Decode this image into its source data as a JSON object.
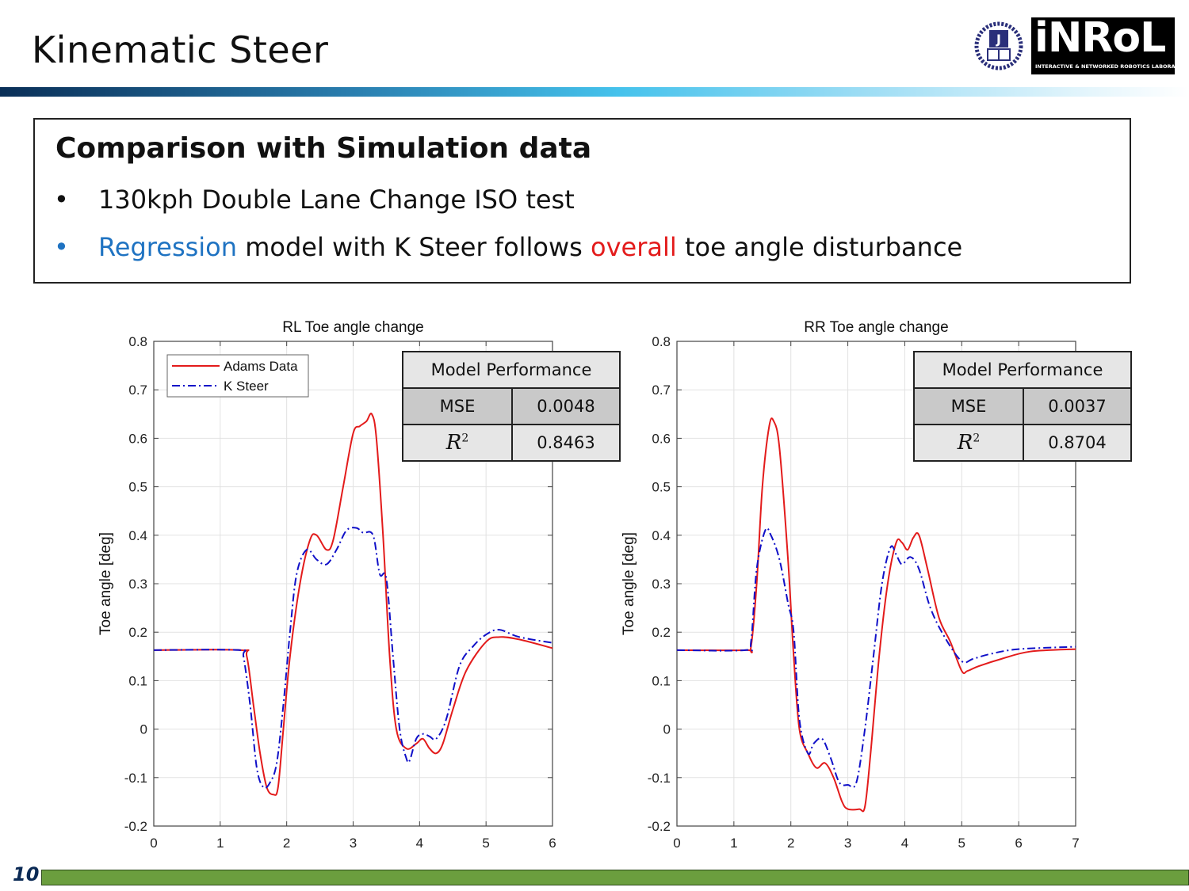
{
  "header": {
    "title": "Kinematic Steer",
    "logo_text": "iNRoL",
    "logo_subtext": "INTERACTIVE & NETWORKED ROBOTICS LABORATORY"
  },
  "summary": {
    "heading": "Comparison with Simulation data",
    "bullets": [
      {
        "marker": "•",
        "text": "130kph Double Lane Change ISO test"
      },
      {
        "marker": "•",
        "part1": "Regression",
        "part2": " model with K Steer follows ",
        "part3": "overall",
        "part4": " toe angle disturbance"
      }
    ]
  },
  "colors": {
    "adams": "#e31b1b",
    "ksteer": "#1010c8",
    "accent_blue": "#1f73c2",
    "footer": "#6b9e3e"
  },
  "tables": [
    {
      "title": "Model Performance",
      "mse_label": "MSE",
      "mse": "0.0048",
      "r2_label": "R",
      "r2_sup": "2",
      "r2": "0.8463"
    },
    {
      "title": "Model Performance",
      "mse_label": "MSE",
      "mse": "0.0037",
      "r2_label": "R",
      "r2_sup": "2",
      "r2": "0.8704"
    }
  ],
  "footer": {
    "page_number": "10"
  },
  "chart_data": [
    {
      "type": "line",
      "title": "RL Toe angle change",
      "xlabel": "",
      "ylabel": "Toe angle [deg]",
      "xlim": [
        0,
        6
      ],
      "ylim": [
        -0.2,
        0.8
      ],
      "xticks": [
        "0",
        "1",
        "2",
        "3",
        "4",
        "5",
        "6"
      ],
      "yticks": [
        "-0.2",
        "-0.1",
        "0",
        "0.1",
        "0.2",
        "0.3",
        "0.4",
        "0.5",
        "0.6",
        "0.7",
        "0.8"
      ],
      "grid": true,
      "legend": {
        "placement": "top-left",
        "entries": [
          "Adams Data",
          "K Steer"
        ]
      },
      "series": [
        {
          "name": "Adams Data",
          "style": "solid",
          "x": [
            0,
            1.3,
            1.4,
            1.5,
            1.6,
            1.7,
            1.8,
            1.87,
            1.95,
            2.05,
            2.2,
            2.35,
            2.45,
            2.6,
            2.7,
            2.85,
            3.0,
            3.1,
            3.2,
            3.28,
            3.35,
            3.45,
            3.55,
            3.65,
            3.8,
            3.95,
            4.05,
            4.15,
            4.25,
            4.35,
            4.5,
            4.7,
            5.0,
            5.2,
            5.5,
            6.0
          ],
          "y": [
            0.163,
            0.163,
            0.15,
            0.05,
            -0.05,
            -0.12,
            -0.135,
            -0.12,
            0.0,
            0.15,
            0.3,
            0.39,
            0.4,
            0.37,
            0.39,
            0.5,
            0.61,
            0.625,
            0.635,
            0.65,
            0.6,
            0.4,
            0.15,
            0.0,
            -0.04,
            -0.03,
            -0.02,
            -0.04,
            -0.05,
            -0.03,
            0.04,
            0.12,
            0.18,
            0.19,
            0.185,
            0.167
          ]
        },
        {
          "name": "K Steer",
          "style": "dashdot",
          "x": [
            0,
            1.3,
            1.35,
            1.45,
            1.55,
            1.65,
            1.75,
            1.85,
            1.95,
            2.05,
            2.15,
            2.3,
            2.45,
            2.6,
            2.75,
            2.9,
            3.05,
            3.15,
            3.3,
            3.4,
            3.5,
            3.6,
            3.7,
            3.8,
            3.85,
            3.95,
            4.05,
            4.15,
            4.25,
            4.4,
            4.6,
            4.8,
            5.0,
            5.2,
            5.5,
            6.0
          ],
          "y": [
            0.163,
            0.163,
            0.15,
            0.05,
            -0.08,
            -0.12,
            -0.11,
            -0.07,
            0.05,
            0.2,
            0.32,
            0.37,
            0.35,
            0.34,
            0.37,
            0.41,
            0.415,
            0.405,
            0.4,
            0.32,
            0.31,
            0.15,
            0.0,
            -0.06,
            -0.065,
            -0.02,
            -0.01,
            -0.015,
            -0.02,
            0.02,
            0.13,
            0.17,
            0.195,
            0.205,
            0.19,
            0.178
          ]
        }
      ]
    },
    {
      "type": "line",
      "title": "RR Toe angle change",
      "xlabel": "",
      "ylabel": "Toe angle [deg]",
      "xlim": [
        0,
        7
      ],
      "ylim": [
        -0.2,
        0.8
      ],
      "xticks": [
        "0",
        "1",
        "2",
        "3",
        "4",
        "5",
        "6",
        "7"
      ],
      "yticks": [
        "-0.2",
        "-0.1",
        "0",
        "0.1",
        "0.2",
        "0.3",
        "0.4",
        "0.5",
        "0.6",
        "0.7",
        "0.8"
      ],
      "grid": true,
      "legend": null,
      "series": [
        {
          "name": "Adams Data",
          "style": "solid",
          "x": [
            0,
            1.2,
            1.3,
            1.4,
            1.5,
            1.62,
            1.7,
            1.8,
            1.95,
            2.05,
            2.15,
            2.3,
            2.45,
            2.6,
            2.75,
            2.9,
            3.0,
            3.2,
            3.3,
            3.4,
            3.55,
            3.7,
            3.85,
            3.95,
            4.05,
            4.15,
            4.25,
            4.4,
            4.6,
            4.8,
            5.0,
            5.1,
            5.3,
            5.7,
            6.2,
            7.0
          ],
          "y": [
            0.163,
            0.163,
            0.17,
            0.3,
            0.5,
            0.625,
            0.635,
            0.58,
            0.35,
            0.15,
            0.0,
            -0.05,
            -0.08,
            -0.07,
            -0.1,
            -0.15,
            -0.165,
            -0.165,
            -0.16,
            -0.05,
            0.15,
            0.3,
            0.385,
            0.385,
            0.37,
            0.395,
            0.4,
            0.33,
            0.23,
            0.18,
            0.12,
            0.12,
            0.13,
            0.145,
            0.16,
            0.165
          ]
        },
        {
          "name": "K Steer",
          "style": "dashdot",
          "x": [
            0,
            1.2,
            1.3,
            1.4,
            1.55,
            1.65,
            1.8,
            1.95,
            2.05,
            2.15,
            2.3,
            2.4,
            2.55,
            2.7,
            2.85,
            3.0,
            3.15,
            3.3,
            3.45,
            3.6,
            3.75,
            3.85,
            3.95,
            4.1,
            4.25,
            4.45,
            4.7,
            5.0,
            5.2,
            5.5,
            6.0,
            7.0
          ],
          "y": [
            0.163,
            0.163,
            0.18,
            0.33,
            0.41,
            0.4,
            0.35,
            0.26,
            0.2,
            0.02,
            -0.05,
            -0.03,
            -0.02,
            -0.06,
            -0.11,
            -0.115,
            -0.11,
            0.0,
            0.15,
            0.3,
            0.375,
            0.36,
            0.34,
            0.355,
            0.33,
            0.25,
            0.19,
            0.14,
            0.145,
            0.155,
            0.165,
            0.17
          ]
        }
      ]
    }
  ]
}
